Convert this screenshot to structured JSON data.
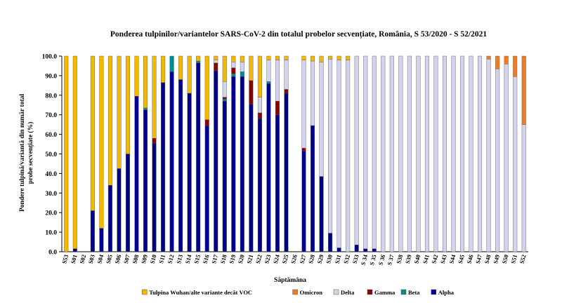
{
  "chart_data": {
    "type": "bar",
    "stacked": true,
    "title": "Ponderea tulpinilor/variantelor SARS-CoV-2 din totalul probelor secvențiate, România, S 53/2020 - S 52/2021",
    "xlabel": "Săptămâna",
    "ylabel_line1": "Pondere tulpină/variantă  din număr total",
    "ylabel_line2": "probe secvențiate (%)",
    "ylim": [
      0,
      100
    ],
    "yticks": [
      "0.0",
      "10.0",
      "20.0",
      "30.0",
      "40.0",
      "50.0",
      "60.0",
      "70.0",
      "80.0",
      "90.0",
      "100.0"
    ],
    "grid": false,
    "legend_position": "bottom",
    "categories": [
      "S53",
      "S01",
      "S02",
      "S03",
      "S04",
      "S05",
      "S06",
      "S07",
      "S08",
      "S09",
      "S10",
      "S11",
      "S12",
      "S13",
      "S14",
      "S15",
      "S16",
      "S17",
      "S18",
      "S19",
      "S20",
      "S21",
      "S22",
      "S23",
      "S24",
      "S25",
      "S26",
      "S27",
      "S28",
      "S29",
      "S30",
      "S31",
      "S32",
      "S33",
      "S 34",
      "S 35",
      "S 36",
      "S 37",
      "S38",
      "S39",
      "S40",
      "S41",
      "S42",
      "S43",
      "S44",
      "S45",
      "S46",
      "S47",
      "S48",
      "S49",
      "S50",
      "S51",
      "S52"
    ],
    "series": [
      {
        "name": "Alpha",
        "color": "#00008B",
        "values": [
          0,
          1.5,
          null,
          21,
          12,
          34,
          42.5,
          50,
          79.5,
          72.5,
          55.5,
          86.5,
          92,
          88,
          81,
          96.5,
          64.5,
          92.5,
          77,
          89.5,
          89.5,
          75.5,
          68,
          86,
          70,
          81,
          null,
          51.5,
          64.5,
          38.5,
          9.5,
          2,
          0,
          3.5,
          1.5,
          1.5,
          0,
          0,
          0,
          0,
          0,
          0,
          0,
          0,
          0,
          0,
          0,
          0,
          0,
          0,
          0,
          0,
          0
        ]
      },
      {
        "name": "Beta",
        "color": "#008B8B",
        "values": [
          0,
          0,
          null,
          0,
          0,
          0,
          0,
          0,
          0,
          1,
          0,
          0,
          8,
          0,
          0,
          1,
          0,
          0,
          1,
          1.5,
          2.5,
          0,
          0,
          1,
          0,
          0,
          null,
          0,
          0,
          0,
          0,
          0,
          0,
          0,
          0,
          0,
          0,
          0,
          0,
          0,
          0,
          0,
          0,
          0,
          0,
          0,
          0,
          0,
          0,
          0,
          0,
          0,
          0
        ]
      },
      {
        "name": "Gamma",
        "color": "#8B0000",
        "values": [
          0,
          0,
          null,
          0,
          0,
          0,
          0,
          0,
          0,
          0,
          2.5,
          0,
          0,
          0,
          0,
          0,
          3,
          4,
          1,
          3,
          0,
          12,
          3,
          0,
          7,
          2,
          null,
          1.5,
          0,
          0,
          0,
          0,
          0,
          0,
          0,
          0,
          0,
          0,
          0,
          0,
          0,
          0,
          0,
          0,
          0,
          0,
          0,
          0,
          0,
          0,
          0,
          0,
          0
        ]
      },
      {
        "name": "Delta",
        "color": "#D3D3EE",
        "values": [
          0,
          0,
          null,
          0,
          0,
          0,
          0,
          0,
          0,
          0,
          0,
          0,
          0,
          0,
          0,
          0,
          0,
          1.5,
          8,
          3,
          5,
          0,
          8,
          11,
          21,
          15,
          null,
          45,
          33,
          58.5,
          89,
          96,
          98,
          96.5,
          98.5,
          98.5,
          100,
          100,
          100,
          100,
          100,
          100,
          100,
          100,
          100,
          100,
          100,
          100,
          98.5,
          93.5,
          96,
          89.5,
          65
        ]
      },
      {
        "name": "Omicron",
        "color": "#F47A20",
        "values": [
          0,
          0,
          null,
          0,
          0,
          0,
          0,
          0,
          0,
          0,
          0,
          0,
          0,
          0,
          0,
          0,
          0,
          0,
          0,
          0,
          0,
          0,
          0,
          0,
          0,
          0,
          null,
          0,
          0,
          0,
          0,
          0,
          0,
          0,
          0,
          0,
          0,
          0,
          0,
          0,
          0,
          0,
          0,
          0,
          0,
          0,
          0,
          0,
          1.5,
          6.5,
          4,
          10.5,
          35
        ]
      },
      {
        "name": "Tulpina Wuhan/alte variante decât VOC",
        "color": "#F5B800",
        "values": [
          100,
          98.5,
          null,
          79,
          88,
          66,
          57.5,
          50,
          20.5,
          26.5,
          42,
          13.5,
          0,
          12,
          19,
          2.5,
          32.5,
          2,
          13,
          3,
          3,
          12.5,
          21,
          2,
          2,
          2,
          null,
          2,
          2.5,
          3,
          1.5,
          2,
          2,
          0,
          0,
          0,
          0,
          0,
          0,
          0,
          0,
          0,
          0,
          0,
          0,
          0,
          0,
          0,
          0,
          0,
          0,
          0,
          0
        ]
      }
    ],
    "legend": [
      {
        "name": "Tulpina Wuhan/alte variante decât VOC",
        "color": "#F5B800"
      },
      {
        "name": "Omicron",
        "color": "#F47A20"
      },
      {
        "name": "Delta",
        "color": "#D3D3EE"
      },
      {
        "name": "Gamma",
        "color": "#8B0000"
      },
      {
        "name": "Beta",
        "color": "#008B8B"
      },
      {
        "name": "Alpha",
        "color": "#00008B"
      }
    ]
  }
}
